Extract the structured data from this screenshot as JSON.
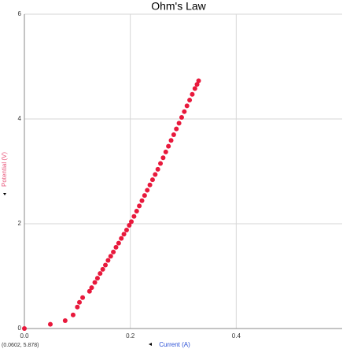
{
  "chart_data": {
    "type": "scatter",
    "title": "Ohm's Law",
    "x_label": "Current (A)",
    "y_label": "Potential (V)",
    "status": "(0.0602, 5.878)",
    "x": [
      0,
      0.049,
      0.077,
      0.092,
      0.1,
      0.104,
      0.11,
      0.123,
      0.127,
      0.133,
      0.138,
      0.143,
      0.148,
      0.153,
      0.158,
      0.163,
      0.168,
      0.173,
      0.178,
      0.183,
      0.188,
      0.193,
      0.198,
      0.202,
      0.207,
      0.212,
      0.217,
      0.222,
      0.227,
      0.232,
      0.237,
      0.242,
      0.247,
      0.252,
      0.257,
      0.262,
      0.267,
      0.272,
      0.277,
      0.282,
      0.287,
      0.292,
      0.297,
      0.302,
      0.307,
      0.312,
      0.317,
      0.322,
      0.326,
      0.329
    ],
    "values": [
      0,
      0.08,
      0.15,
      0.26,
      0.41,
      0.5,
      0.59,
      0.71,
      0.78,
      0.88,
      0.96,
      1.05,
      1.13,
      1.21,
      1.3,
      1.38,
      1.46,
      1.55,
      1.63,
      1.72,
      1.8,
      1.88,
      1.97,
      2.04,
      2.14,
      2.24,
      2.34,
      2.44,
      2.54,
      2.64,
      2.74,
      2.84,
      2.94,
      3.04,
      3.15,
      3.26,
      3.37,
      3.48,
      3.59,
      3.7,
      3.81,
      3.92,
      4.03,
      4.14,
      4.25,
      4.36,
      4.47,
      4.58,
      4.66,
      4.73
    ],
    "color": "#e8193c",
    "xlim": [
      0,
      0.6
    ],
    "xticks": [
      {
        "value": 0,
        "label": "0.0"
      },
      0.2,
      0.4
    ],
    "ylim": [
      0,
      6
    ],
    "yticks": [
      0,
      2,
      4,
      6
    ],
    "grid": true
  }
}
